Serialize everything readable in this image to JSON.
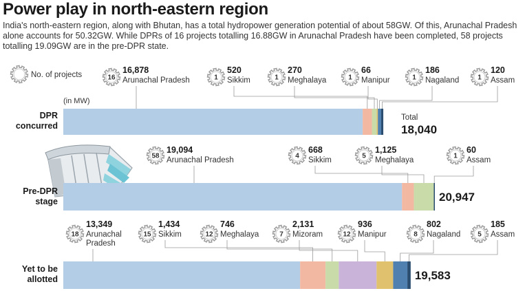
{
  "title": "Power play in north-eastern region",
  "intro": "India's north-eastern region, along with Bhutan, has a total hydropower generation potential of about 58GW. Of this, Arunachal Pradesh alone accounts for 50.32GW. While DPRs of 16 projects totalling 16.88GW in Arunachal Pradesh have been completed, 58 projects totalling 19.09GW are in the pre-DPR state.",
  "legend_label": "No. of projects",
  "unit_label": "(in MW)",
  "total_label": "Total",
  "chart_data": {
    "type": "bar",
    "orientation": "horizontal",
    "stacked": true,
    "unit": "MW",
    "colors": {
      "Arunachal Pradesh": "#b4cde6",
      "Sikkim": "#f2b8a2",
      "Meghalaya": "#c9dba9",
      "Mizoram": "#c9b3d9",
      "Manipur": "#e0c26e",
      "Nagaland": "#4f80b0",
      "Assam": "#2a4d70"
    },
    "stages": [
      {
        "label": "DPR concurred",
        "total": 18040,
        "total_text": "18,040",
        "segments": [
          {
            "state": "Arunachal Pradesh",
            "value": 16878,
            "value_text": "16,878",
            "projects": 16
          },
          {
            "state": "Sikkim",
            "value": 520,
            "value_text": "520",
            "projects": 1
          },
          {
            "state": "Meghalaya",
            "value": 270,
            "value_text": "270",
            "projects": 1
          },
          {
            "state": "Manipur",
            "value": 66,
            "value_text": "66",
            "projects": 1
          },
          {
            "state": "Nagaland",
            "value": 186,
            "value_text": "186",
            "projects": 1
          },
          {
            "state": "Assam",
            "value": 120,
            "value_text": "120",
            "projects": 1
          }
        ]
      },
      {
        "label": "Pre-DPR stage",
        "total": 20947,
        "total_text": "20,947",
        "segments": [
          {
            "state": "Arunachal Pradesh",
            "value": 19094,
            "value_text": "19,094",
            "projects": 58
          },
          {
            "state": "Sikkim",
            "value": 668,
            "value_text": "668",
            "projects": 4
          },
          {
            "state": "Meghalaya",
            "value": 1125,
            "value_text": "1,125",
            "projects": 5
          },
          {
            "state": "Assam",
            "value": 60,
            "value_text": "60",
            "projects": 1
          }
        ]
      },
      {
        "label": "Yet to be allotted",
        "total": 19583,
        "total_text": "19,583",
        "segments": [
          {
            "state": "Arunachal Pradesh",
            "value": 13349,
            "value_text": "13,349",
            "projects": 18
          },
          {
            "state": "Sikkim",
            "value": 1434,
            "value_text": "1,434",
            "projects": 15
          },
          {
            "state": "Meghalaya",
            "value": 746,
            "value_text": "746",
            "projects": 12
          },
          {
            "state": "Mizoram",
            "value": 2131,
            "value_text": "2,131",
            "projects": 7
          },
          {
            "state": "Manipur",
            "value": 936,
            "value_text": "936",
            "projects": 12
          },
          {
            "state": "Nagaland",
            "value": 802,
            "value_text": "802",
            "projects": 8
          },
          {
            "state": "Assam",
            "value": 185,
            "value_text": "185",
            "projects": 5
          }
        ]
      }
    ]
  }
}
